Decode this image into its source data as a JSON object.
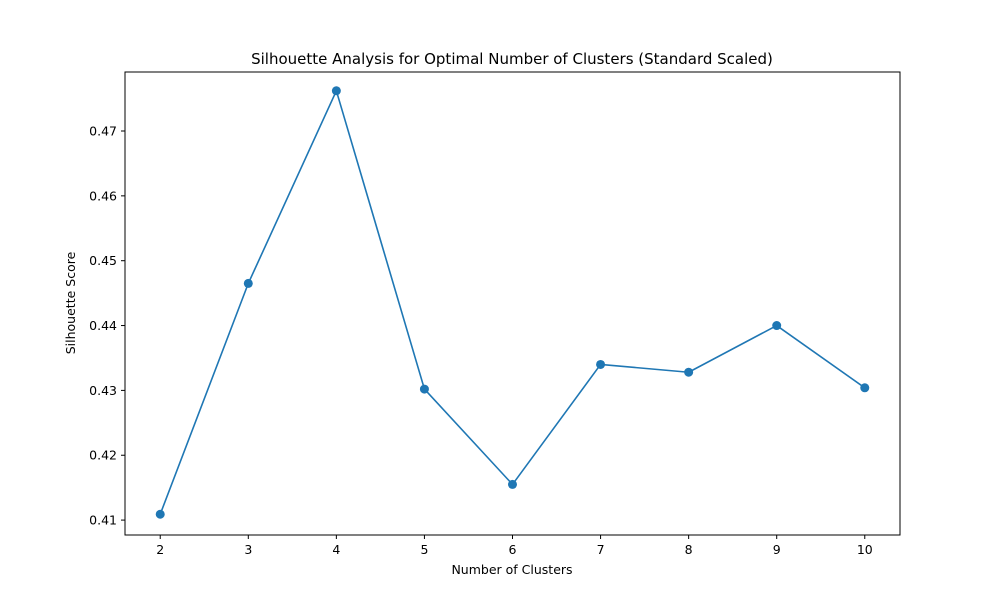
{
  "chart_data": {
    "type": "line",
    "title": "Silhouette Analysis for Optimal Number of Clusters (Standard Scaled)",
    "xlabel": "Number of Clusters",
    "ylabel": "Silhouette Score",
    "x": [
      2,
      3,
      4,
      5,
      6,
      7,
      8,
      9,
      10
    ],
    "series": [
      {
        "values": [
          0.4109,
          0.4465,
          0.4762,
          0.4302,
          0.4155,
          0.434,
          0.4328,
          0.44,
          0.4304
        ]
      }
    ],
    "xticks": [
      "2",
      "3",
      "4",
      "5",
      "6",
      "7",
      "8",
      "9",
      "10"
    ],
    "yticks": [
      "0.41",
      "0.42",
      "0.43",
      "0.44",
      "0.45",
      "0.46",
      "0.47"
    ],
    "xlim": [
      1.6,
      10.4
    ],
    "ylim": [
      0.4077,
      0.4791
    ],
    "grid": false,
    "marker": "circle",
    "line_color": "#1f77b4"
  }
}
